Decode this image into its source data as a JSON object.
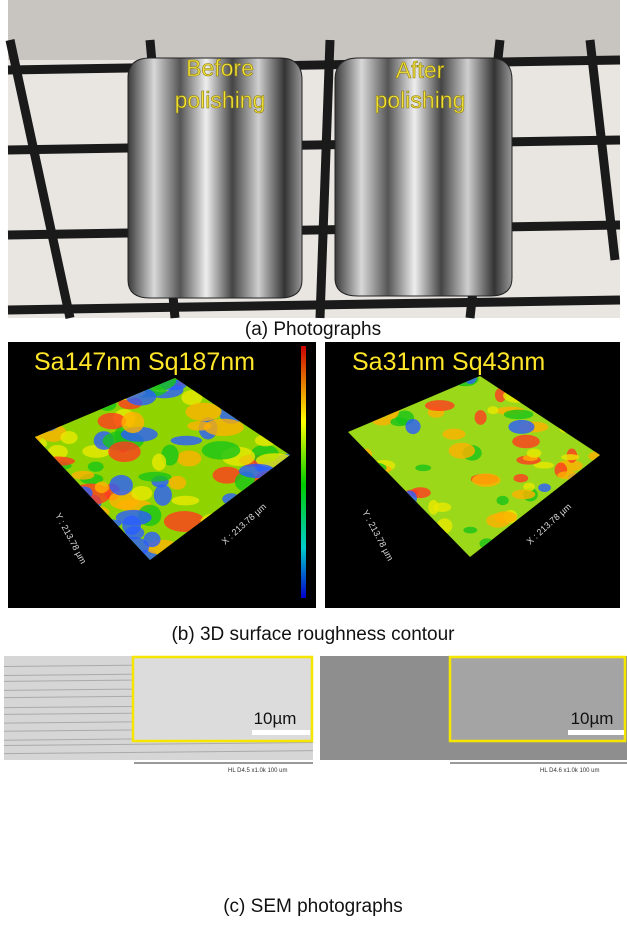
{
  "photographs": {
    "labels": [
      [
        "Before",
        "polishing"
      ],
      [
        "After",
        "polishing"
      ]
    ],
    "caption": "(a) Photographs"
  },
  "roughness": {
    "panels": [
      {
        "metrics": "Sa147nm Sq187nm",
        "y_axis": "Y : 213.78 µm",
        "x_axis": "X : 213.78 µm"
      },
      {
        "metrics": "Sa31nm Sq43nm",
        "y_axis": "Y : 213.78 µm",
        "x_axis": "X : 213.78 µm"
      }
    ],
    "caption": "(b) 3D surface roughness contour"
  },
  "sem": {
    "panels": [
      {
        "scale_bar": "10µm",
        "footer": "HL  D4.5  x1.0k    100 um"
      },
      {
        "scale_bar": "10µm",
        "footer": "HL  D4.6  x1.0k    100 um"
      }
    ],
    "caption": "(c) SEM photographs"
  }
}
